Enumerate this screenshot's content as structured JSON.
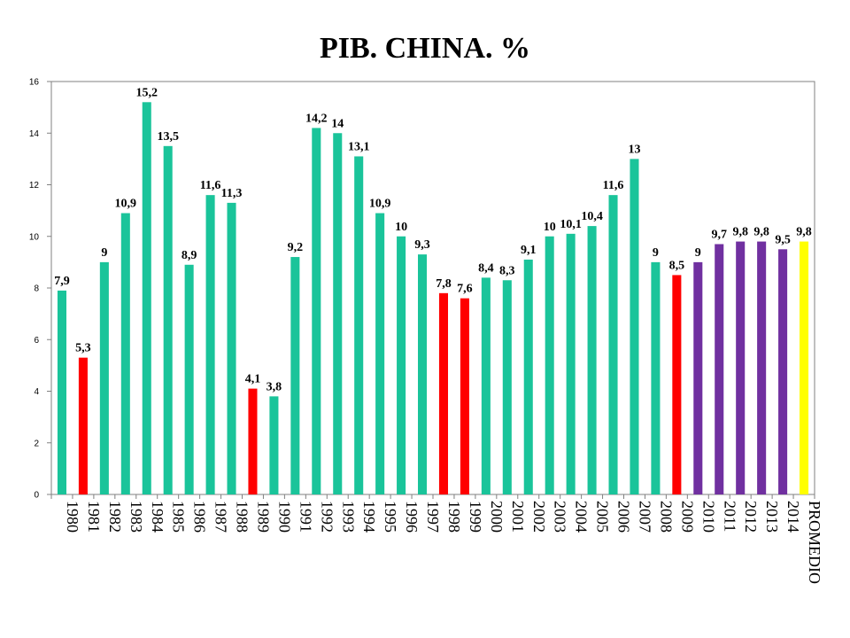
{
  "chart_data": {
    "type": "bar",
    "title": "PIB. CHINA. %",
    "xlabel": "",
    "ylabel": "",
    "ylim": [
      0,
      16
    ],
    "yticks": [
      "0",
      "2",
      "4",
      "6",
      "8",
      "10",
      "12",
      "14",
      "16"
    ],
    "grid": false,
    "legend": "none",
    "categories": [
      "1980",
      "1981",
      "1982",
      "1983",
      "1984",
      "1985",
      "1986",
      "1987",
      "1988",
      "1989",
      "1990",
      "1991",
      "1992",
      "1993",
      "1994",
      "1995",
      "1996",
      "1997",
      "1998",
      "1999",
      "2000",
      "2001",
      "2002",
      "2003",
      "2004",
      "2005",
      "2006",
      "2007",
      "2008",
      "2009",
      "2010",
      "2011",
      "2012",
      "2013",
      "2014",
      "PROMEDIO"
    ],
    "values": [
      7.9,
      5.3,
      9,
      10.9,
      15.2,
      13.5,
      8.9,
      11.6,
      11.3,
      4.1,
      3.8,
      9.2,
      14.2,
      14,
      13.1,
      10.9,
      10,
      9.3,
      7.8,
      7.6,
      8.4,
      8.3,
      9.1,
      10,
      10.1,
      10.4,
      11.6,
      13,
      9,
      8.5,
      9,
      9.7,
      9.8,
      9.8,
      9.5,
      9.8
    ],
    "value_labels": [
      "7,9",
      "5,3",
      "9",
      "10,9",
      "15,2",
      "13,5",
      "8,9",
      "11,6",
      "11,3",
      "4,1",
      "3,8",
      "9,2",
      "14,2",
      "14",
      "13,1",
      "10,9",
      "10",
      "9,3",
      "7,8",
      "7,6",
      "8,4",
      "8,3",
      "9,1",
      "10",
      "10,1",
      "10,4",
      "11,6",
      "13",
      "9",
      "8,5",
      "9",
      "9,7",
      "9,8",
      "9,8",
      "9,5",
      "9,8"
    ],
    "bar_colors": [
      "#1ac49a",
      "#ff0000",
      "#1ac49a",
      "#1ac49a",
      "#1ac49a",
      "#1ac49a",
      "#1ac49a",
      "#1ac49a",
      "#1ac49a",
      "#ff0000",
      "#1ac49a",
      "#1ac49a",
      "#1ac49a",
      "#1ac49a",
      "#1ac49a",
      "#1ac49a",
      "#1ac49a",
      "#1ac49a",
      "#ff0000",
      "#ff0000",
      "#1ac49a",
      "#1ac49a",
      "#1ac49a",
      "#1ac49a",
      "#1ac49a",
      "#1ac49a",
      "#1ac49a",
      "#1ac49a",
      "#1ac49a",
      "#ff0000",
      "#7030a0",
      "#7030a0",
      "#7030a0",
      "#7030a0",
      "#7030a0",
      "#ffff00"
    ]
  }
}
